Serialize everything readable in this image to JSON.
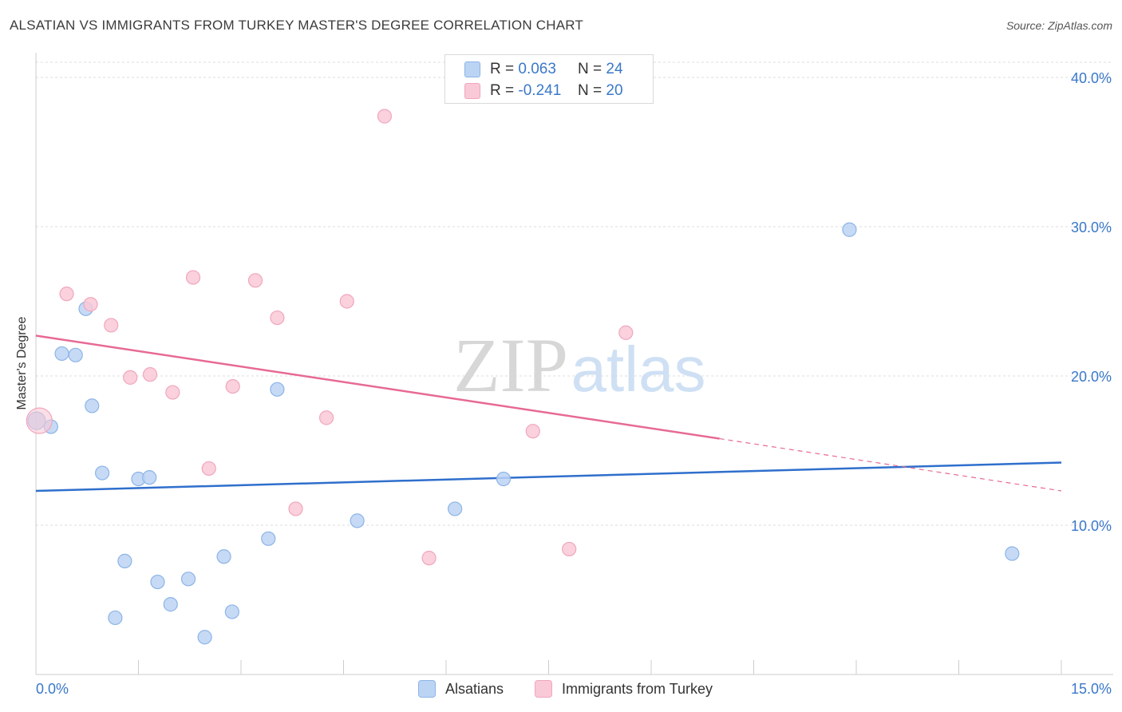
{
  "title": "ALSATIAN VS IMMIGRANTS FROM TURKEY MASTER'S DEGREE CORRELATION CHART",
  "source": "Source: ZipAtlas.com",
  "watermark": {
    "zip": "ZIP",
    "atlas": "atlas"
  },
  "legend": {
    "r_label": "R =",
    "n_label": "N =",
    "rows": [
      {
        "r": "0.063",
        "n": "24"
      },
      {
        "r": "-0.241",
        "n": "20"
      }
    ]
  },
  "colors": {
    "blue_fill": "#bcd4f4",
    "blue_stroke": "#8db4e6",
    "blue_line": "#2f6fcc",
    "pink_fill": "#f9c9d7",
    "pink_stroke": "#f1a6bc",
    "pink_line": "#e76a93",
    "axis_text": "#3a78c9",
    "grid": "#dddddd"
  },
  "chart_data": {
    "type": "scatter",
    "title": "ALSATIAN VS IMMIGRANTS FROM TURKEY MASTER'S DEGREE CORRELATION CHART",
    "xlabel": "",
    "ylabel": "Master's Degree",
    "xlim": [
      0,
      15
    ],
    "ylim": [
      0,
      41
    ],
    "x_tick_labels": [
      "0.0%",
      "15.0%"
    ],
    "y_ticks": [
      10,
      20,
      30,
      40
    ],
    "y_tick_labels": [
      "10.0%",
      "20.0%",
      "30.0%",
      "40.0%"
    ],
    "grid": "horizontal dashed",
    "legend_position": "top-center",
    "series": [
      {
        "name": "Alsatians",
        "color": "blue",
        "r": 0.063,
        "n": 24,
        "points": [
          [
            0.01,
            17.0
          ],
          [
            0.22,
            16.6
          ],
          [
            0.38,
            21.5
          ],
          [
            0.58,
            21.4
          ],
          [
            0.73,
            24.5
          ],
          [
            0.82,
            18.0
          ],
          [
            0.97,
            13.5
          ],
          [
            1.16,
            3.8
          ],
          [
            1.3,
            7.6
          ],
          [
            1.5,
            13.1
          ],
          [
            1.66,
            13.2
          ],
          [
            1.78,
            6.2
          ],
          [
            1.97,
            4.7
          ],
          [
            2.23,
            6.4
          ],
          [
            2.47,
            2.5
          ],
          [
            2.75,
            7.9
          ],
          [
            2.87,
            4.2
          ],
          [
            3.4,
            9.1
          ],
          [
            3.53,
            19.1
          ],
          [
            4.7,
            10.3
          ],
          [
            6.13,
            11.1
          ],
          [
            6.84,
            13.1
          ],
          [
            11.9,
            29.8
          ],
          [
            14.28,
            8.1
          ]
        ],
        "trend": {
          "x": [
            0,
            15
          ],
          "y": [
            12.3,
            14.2
          ]
        }
      },
      {
        "name": "Immigrants from Turkey",
        "color": "pink",
        "r": -0.241,
        "n": 20,
        "points": [
          [
            0.05,
            17.0
          ],
          [
            0.45,
            25.5
          ],
          [
            0.8,
            24.8
          ],
          [
            1.1,
            23.4
          ],
          [
            1.38,
            19.9
          ],
          [
            1.67,
            20.1
          ],
          [
            2.0,
            18.9
          ],
          [
            2.3,
            26.6
          ],
          [
            2.53,
            13.8
          ],
          [
            2.88,
            19.3
          ],
          [
            3.21,
            26.4
          ],
          [
            3.53,
            23.9
          ],
          [
            3.8,
            11.1
          ],
          [
            4.25,
            17.2
          ],
          [
            4.55,
            25.0
          ],
          [
            5.1,
            37.4
          ],
          [
            5.75,
            7.8
          ],
          [
            7.27,
            16.3
          ],
          [
            7.8,
            8.4
          ],
          [
            8.63,
            22.9
          ]
        ],
        "trend": {
          "x": [
            0,
            10.0,
            15
          ],
          "y": [
            22.7,
            15.8,
            12.3
          ]
        }
      }
    ]
  },
  "bottom_legend": {
    "items": [
      "Alsatians",
      "Immigrants from Turkey"
    ]
  }
}
